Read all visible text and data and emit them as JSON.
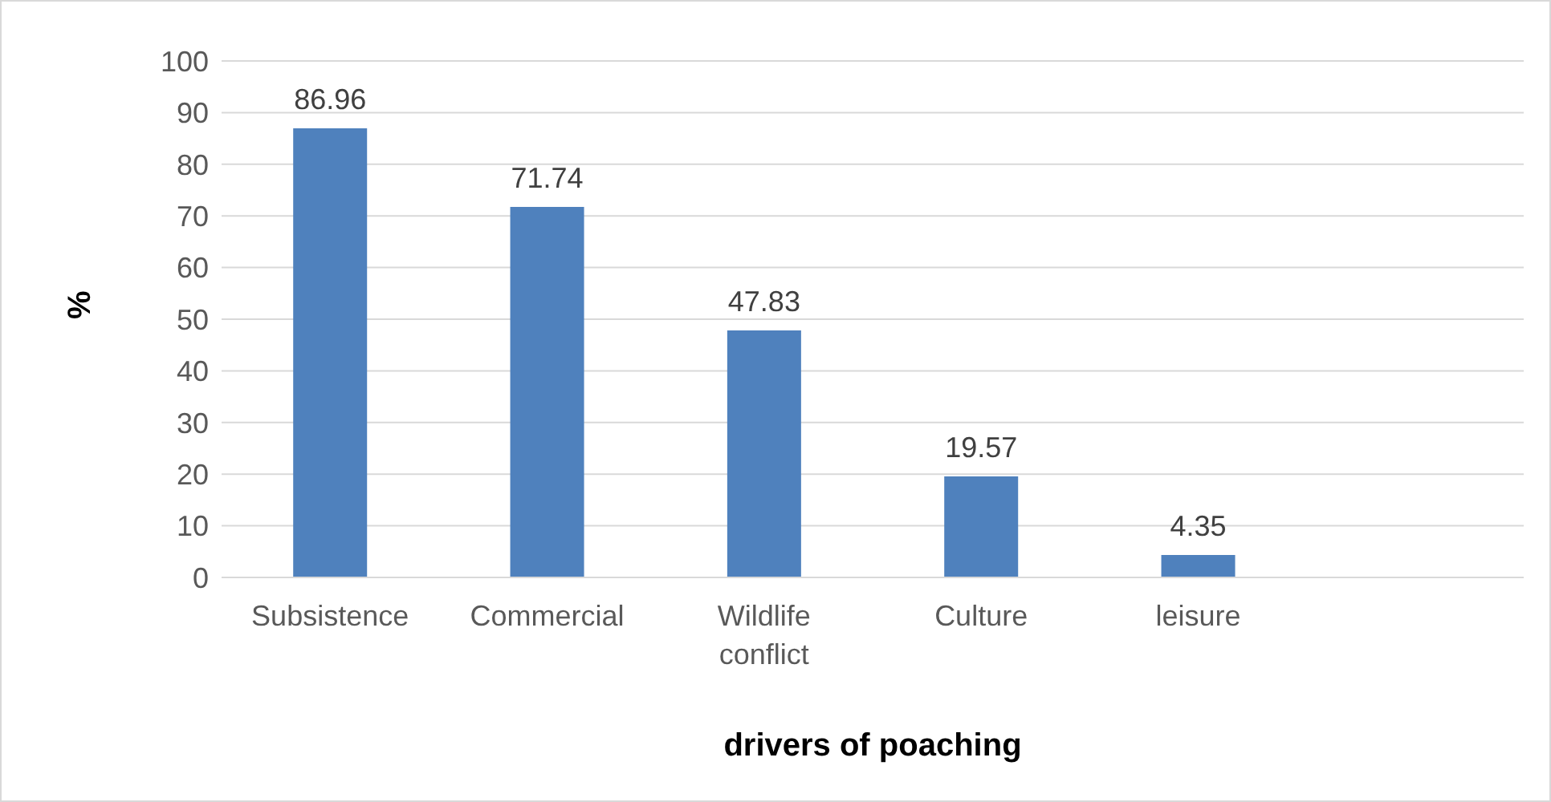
{
  "chart_data": {
    "type": "bar",
    "categories": [
      "Subsistence",
      "Commercial",
      "Wildlife conflict",
      "Culture",
      "leisure",
      null
    ],
    "values": [
      86.96,
      71.74,
      47.83,
      19.57,
      4.35,
      null
    ],
    "color": "#4f81bd",
    "xlabel": "drivers of poaching",
    "ylabel": "%",
    "ylim": [
      0,
      100
    ],
    "yticks": [
      0,
      10,
      20,
      30,
      40,
      50,
      60,
      70,
      80,
      90,
      100
    ],
    "grid": "y",
    "data_labels": true
  }
}
